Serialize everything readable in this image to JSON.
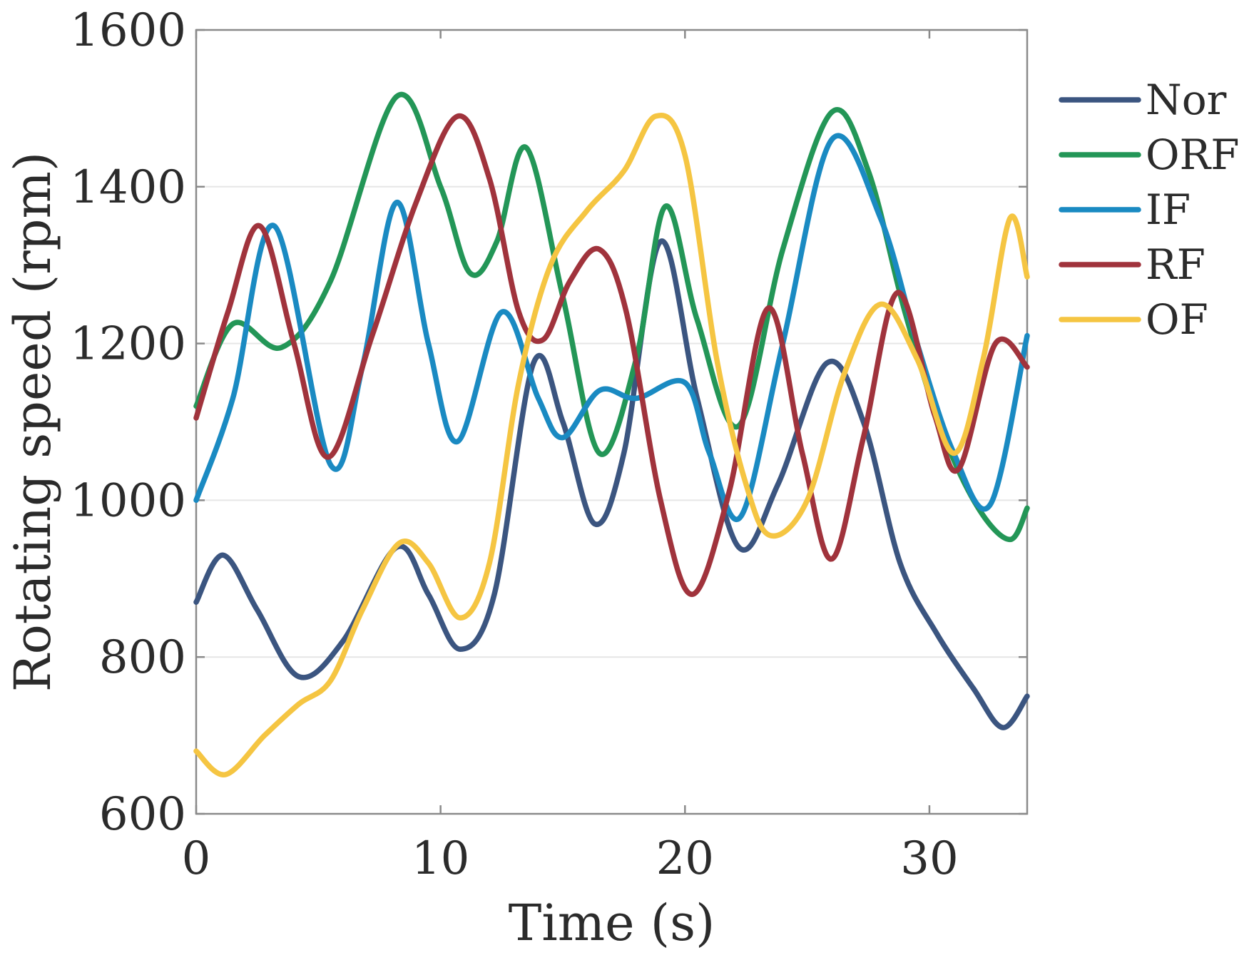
{
  "chart_data": {
    "type": "line",
    "title": "",
    "xlabel": "Time (s)",
    "ylabel": "Rotating speed (rpm)",
    "xlim": [
      0,
      34
    ],
    "ylim": [
      600,
      1600
    ],
    "xticks": [
      0,
      10,
      20,
      30
    ],
    "yticks": [
      600,
      800,
      1000,
      1200,
      1400,
      1600
    ],
    "grid": "horizontal",
    "legend_position": "outside-right",
    "series": [
      {
        "name": "Nor",
        "color": "#3b5580",
        "x": [
          0,
          1.1,
          2.5,
          4.2,
          6,
          8.2,
          9.5,
          10.8,
          12.2,
          13.8,
          15,
          16.3,
          17.5,
          19,
          20.5,
          22.2,
          23.8,
          25.8,
          27.3,
          28.8,
          30.3,
          31.8,
          33,
          34
        ],
        "y": [
          870,
          930,
          860,
          775,
          820,
          940,
          880,
          810,
          880,
          1175,
          1100,
          970,
          1060,
          1330,
          1130,
          940,
          1020,
          1175,
          1100,
          920,
          830,
          760,
          710,
          750
        ]
      },
      {
        "name": "ORF",
        "color": "#239657",
        "x": [
          0,
          1.5,
          3.5,
          5.5,
          8.2,
          10,
          11.2,
          12.3,
          13.5,
          15,
          16.5,
          18,
          19.2,
          20.5,
          22.2,
          24,
          26,
          27.5,
          29,
          30.5,
          32,
          33.3,
          34
        ],
        "y": [
          1120,
          1225,
          1195,
          1280,
          1515,
          1400,
          1290,
          1330,
          1450,
          1260,
          1060,
          1180,
          1375,
          1230,
          1095,
          1320,
          1495,
          1420,
          1240,
          1090,
          990,
          950,
          990
        ]
      },
      {
        "name": "IF",
        "color": "#1a8ac2",
        "x": [
          0,
          1.5,
          3.2,
          5.5,
          6.8,
          8.2,
          9.5,
          10.7,
          12.5,
          14,
          15,
          16.5,
          18,
          20,
          21,
          22.3,
          24,
          26,
          28,
          29.5,
          31,
          32.5,
          34
        ],
        "y": [
          1000,
          1130,
          1350,
          1045,
          1170,
          1380,
          1200,
          1075,
          1240,
          1130,
          1080,
          1140,
          1130,
          1150,
          1060,
          980,
          1200,
          1460,
          1360,
          1200,
          1060,
          995,
          1210
        ]
      },
      {
        "name": "RF",
        "color": "#a0333c",
        "x": [
          0,
          1.3,
          2.6,
          4,
          5.4,
          7.2,
          9,
          10.7,
          12,
          13.2,
          14.2,
          15.3,
          16.5,
          17.6,
          19,
          20.3,
          21.8,
          23.4,
          24.8,
          26,
          27.3,
          28.7,
          30.2,
          31.2,
          32.7,
          34
        ],
        "y": [
          1105,
          1240,
          1350,
          1200,
          1055,
          1210,
          1380,
          1490,
          1410,
          1240,
          1205,
          1280,
          1320,
          1240,
          1000,
          880,
          1010,
          1245,
          1060,
          925,
          1080,
          1265,
          1110,
          1040,
          1200,
          1170
        ]
      },
      {
        "name": "OF",
        "color": "#f5c542",
        "x": [
          0,
          1.2,
          2.8,
          4.2,
          5.5,
          6.8,
          8.3,
          9.5,
          10.8,
          12,
          13.2,
          14.5,
          16,
          17.5,
          18.8,
          20,
          21.3,
          22.5,
          23.5,
          25,
          26.5,
          28,
          29.5,
          31,
          32.2,
          33.3,
          34
        ],
        "y": [
          680,
          650,
          700,
          740,
          770,
          860,
          945,
          920,
          850,
          920,
          1150,
          1300,
          1370,
          1420,
          1490,
          1440,
          1180,
          1020,
          955,
          1000,
          1160,
          1250,
          1180,
          1060,
          1180,
          1360,
          1285
        ]
      }
    ]
  }
}
